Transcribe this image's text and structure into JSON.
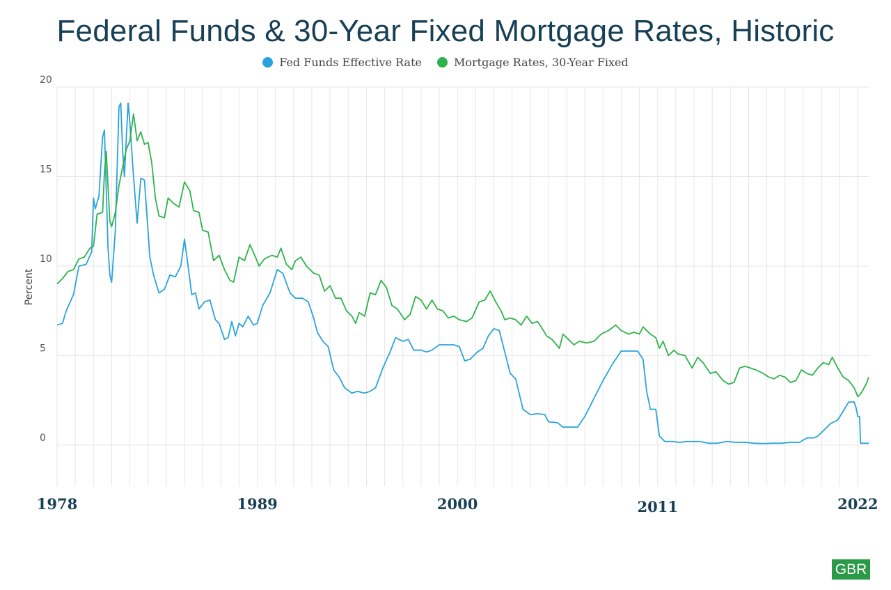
{
  "chart_data": {
    "type": "line",
    "title": "Federal Funds & 30-Year Fixed Mortgage Rates, Historic",
    "ylabel": "Percent",
    "xlabel": "",
    "ylim": [
      -2.3,
      20
    ],
    "yticks": [
      0,
      5,
      10,
      15,
      20
    ],
    "xlim": [
      1978.0,
      2022.6
    ],
    "xticks": [
      {
        "x": 1978.0,
        "label": "1978",
        "drop": false
      },
      {
        "x": 1989.0,
        "label": "1989",
        "drop": false
      },
      {
        "x": 2000.0,
        "label": "2000",
        "drop": false
      },
      {
        "x": 2011.0,
        "label": "2011",
        "drop": true
      },
      {
        "x": 2022.0,
        "label": "2022",
        "drop": false
      }
    ],
    "grid": true,
    "legend": "top-center",
    "series": [
      {
        "name": "Fed Funds Effective Rate",
        "color": "#29a3dc",
        "points": [
          [
            1978.0,
            6.7
          ],
          [
            1978.3,
            6.8
          ],
          [
            1978.5,
            7.5
          ],
          [
            1978.9,
            8.4
          ],
          [
            1979.2,
            10.0
          ],
          [
            1979.6,
            10.1
          ],
          [
            1979.9,
            10.8
          ],
          [
            1980.0,
            13.8
          ],
          [
            1980.1,
            13.2
          ],
          [
            1980.3,
            13.9
          ],
          [
            1980.5,
            17.2
          ],
          [
            1980.6,
            17.6
          ],
          [
            1980.8,
            11.0
          ],
          [
            1980.9,
            9.5
          ],
          [
            1981.0,
            9.1
          ],
          [
            1981.2,
            12.0
          ],
          [
            1981.4,
            18.9
          ],
          [
            1981.5,
            19.1
          ],
          [
            1981.6,
            16.5
          ],
          [
            1981.7,
            15.0
          ],
          [
            1981.9,
            19.1
          ],
          [
            1982.0,
            18.0
          ],
          [
            1982.2,
            15.0
          ],
          [
            1982.4,
            12.4
          ],
          [
            1982.6,
            14.9
          ],
          [
            1982.8,
            14.8
          ],
          [
            1983.1,
            10.5
          ],
          [
            1983.3,
            9.5
          ],
          [
            1983.6,
            8.5
          ],
          [
            1983.9,
            8.7
          ],
          [
            1984.2,
            9.5
          ],
          [
            1984.5,
            9.4
          ],
          [
            1984.8,
            10.0
          ],
          [
            1985.0,
            11.5
          ],
          [
            1985.2,
            10.0
          ],
          [
            1985.4,
            8.4
          ],
          [
            1985.6,
            8.5
          ],
          [
            1985.8,
            7.6
          ],
          [
            1986.1,
            8.0
          ],
          [
            1986.4,
            8.1
          ],
          [
            1986.7,
            7.0
          ],
          [
            1986.9,
            6.8
          ],
          [
            1987.2,
            5.9
          ],
          [
            1987.4,
            6.0
          ],
          [
            1987.6,
            6.9
          ],
          [
            1987.8,
            6.1
          ],
          [
            1988.0,
            6.8
          ],
          [
            1988.2,
            6.6
          ],
          [
            1988.5,
            7.2
          ],
          [
            1988.8,
            6.7
          ],
          [
            1989.0,
            6.8
          ],
          [
            1989.3,
            7.8
          ],
          [
            1989.7,
            8.5
          ],
          [
            1990.1,
            9.8
          ],
          [
            1990.4,
            9.6
          ],
          [
            1990.8,
            8.5
          ],
          [
            1991.1,
            8.2
          ],
          [
            1991.5,
            8.2
          ],
          [
            1991.8,
            8.0
          ],
          [
            1992.1,
            7.1
          ],
          [
            1992.3,
            6.3
          ],
          [
            1992.6,
            5.8
          ],
          [
            1992.9,
            5.5
          ],
          [
            1993.2,
            4.2
          ],
          [
            1993.5,
            3.8
          ],
          [
            1993.8,
            3.2
          ],
          [
            1994.2,
            2.9
          ],
          [
            1994.5,
            3.0
          ],
          [
            1994.9,
            2.9
          ],
          [
            1995.2,
            3.0
          ],
          [
            1995.5,
            3.2
          ],
          [
            1995.9,
            4.3
          ],
          [
            1996.3,
            5.2
          ],
          [
            1996.6,
            6.0
          ],
          [
            1997.0,
            5.8
          ],
          [
            1997.3,
            5.9
          ],
          [
            1997.6,
            5.3
          ],
          [
            1998.0,
            5.3
          ],
          [
            1998.3,
            5.2
          ],
          [
            1998.6,
            5.3
          ],
          [
            1999.0,
            5.6
          ],
          [
            1999.4,
            5.6
          ],
          [
            1999.8,
            5.6
          ],
          [
            2000.1,
            5.5
          ],
          [
            2000.4,
            4.7
          ],
          [
            2000.7,
            4.8
          ],
          [
            2001.1,
            5.2
          ],
          [
            2001.4,
            5.4
          ],
          [
            2001.7,
            6.1
          ],
          [
            2002.0,
            6.5
          ],
          [
            2002.3,
            6.4
          ],
          [
            2002.6,
            5.2
          ],
          [
            2002.9,
            4.0
          ],
          [
            2003.2,
            3.7
          ],
          [
            2003.6,
            2.0
          ],
          [
            2004.0,
            1.7
          ],
          [
            2004.4,
            1.75
          ],
          [
            2004.8,
            1.7
          ],
          [
            2005.0,
            1.3
          ],
          [
            2005.5,
            1.25
          ],
          [
            2005.8,
            1.0
          ],
          [
            2006.3,
            1.0
          ],
          [
            2006.6,
            1.0
          ],
          [
            2007.0,
            1.6
          ],
          [
            2007.5,
            2.6
          ],
          [
            2008.0,
            3.6
          ],
          [
            2008.5,
            4.5
          ],
          [
            2009.0,
            5.25
          ],
          [
            2009.5,
            5.25
          ],
          [
            2009.9,
            5.25
          ],
          [
            2010.2,
            4.8
          ],
          [
            2010.4,
            3.0
          ],
          [
            2010.6,
            2.0
          ],
          [
            2010.9,
            2.0
          ],
          [
            2011.1,
            0.5
          ],
          [
            2011.4,
            0.2
          ],
          [
            2011.8,
            0.2
          ],
          [
            2012.2,
            0.15
          ],
          [
            2012.6,
            0.2
          ],
          [
            2013.3,
            0.2
          ],
          [
            2013.8,
            0.1
          ],
          [
            2014.3,
            0.1
          ],
          [
            2014.8,
            0.2
          ],
          [
            2015.3,
            0.15
          ],
          [
            2015.8,
            0.15
          ],
          [
            2016.3,
            0.1
          ],
          [
            2016.8,
            0.08
          ],
          [
            2017.3,
            0.1
          ],
          [
            2017.8,
            0.1
          ],
          [
            2018.3,
            0.15
          ],
          [
            2018.8,
            0.15
          ],
          [
            2019.2,
            0.4
          ],
          [
            2019.6,
            0.4
          ],
          [
            2019.8,
            0.5
          ],
          [
            2020.2,
            0.9
          ],
          [
            2020.5,
            1.2
          ],
          [
            2020.9,
            1.4
          ],
          [
            2021.2,
            1.9
          ],
          [
            2021.5,
            2.4
          ],
          [
            2021.8,
            2.4
          ],
          [
            2021.9,
            2.1
          ],
          [
            2022.0,
            1.6
          ],
          [
            2022.1,
            1.6
          ],
          [
            2022.15,
            0.1
          ],
          [
            2022.3,
            0.1
          ],
          [
            2022.6,
            0.1
          ]
        ]
      },
      {
        "name": "Mortgage Rates, 30-Year Fixed",
        "color": "#2db34a",
        "points": [
          [
            1978.0,
            9.0
          ],
          [
            1978.3,
            9.3
          ],
          [
            1978.6,
            9.7
          ],
          [
            1978.9,
            9.8
          ],
          [
            1979.2,
            10.4
          ],
          [
            1979.5,
            10.5
          ],
          [
            1979.8,
            11.0
          ],
          [
            1980.0,
            11.1
          ],
          [
            1980.2,
            12.9
          ],
          [
            1980.5,
            13.0
          ],
          [
            1980.6,
            15.2
          ],
          [
            1980.7,
            16.4
          ],
          [
            1980.9,
            12.5
          ],
          [
            1981.0,
            12.2
          ],
          [
            1981.2,
            13.0
          ],
          [
            1981.4,
            14.5
          ],
          [
            1981.6,
            15.5
          ],
          [
            1981.8,
            16.5
          ],
          [
            1982.0,
            17.0
          ],
          [
            1982.2,
            18.5
          ],
          [
            1982.4,
            17.0
          ],
          [
            1982.6,
            17.5
          ],
          [
            1982.8,
            16.8
          ],
          [
            1983.0,
            16.9
          ],
          [
            1983.2,
            15.8
          ],
          [
            1983.4,
            13.8
          ],
          [
            1983.6,
            12.8
          ],
          [
            1983.9,
            12.7
          ],
          [
            1984.1,
            13.8
          ],
          [
            1984.4,
            13.5
          ],
          [
            1984.7,
            13.3
          ],
          [
            1985.0,
            14.7
          ],
          [
            1985.3,
            14.2
          ],
          [
            1985.5,
            13.1
          ],
          [
            1985.8,
            13.0
          ],
          [
            1986.0,
            12.0
          ],
          [
            1986.3,
            11.9
          ],
          [
            1986.6,
            10.3
          ],
          [
            1986.9,
            10.6
          ],
          [
            1987.2,
            9.8
          ],
          [
            1987.5,
            9.2
          ],
          [
            1987.7,
            9.1
          ],
          [
            1988.0,
            10.5
          ],
          [
            1988.3,
            10.3
          ],
          [
            1988.6,
            11.2
          ],
          [
            1988.9,
            10.5
          ],
          [
            1989.1,
            10.0
          ],
          [
            1989.4,
            10.4
          ],
          [
            1989.8,
            10.6
          ],
          [
            1990.1,
            10.5
          ],
          [
            1990.3,
            11.0
          ],
          [
            1990.6,
            10.1
          ],
          [
            1990.9,
            9.8
          ],
          [
            1991.1,
            10.3
          ],
          [
            1991.4,
            10.5
          ],
          [
            1991.7,
            10.0
          ],
          [
            1992.1,
            9.6
          ],
          [
            1992.4,
            9.5
          ],
          [
            1992.7,
            8.6
          ],
          [
            1993.0,
            8.9
          ],
          [
            1993.3,
            8.2
          ],
          [
            1993.6,
            8.2
          ],
          [
            1993.9,
            7.5
          ],
          [
            1994.2,
            7.2
          ],
          [
            1994.4,
            6.8
          ],
          [
            1994.6,
            7.4
          ],
          [
            1994.9,
            7.2
          ],
          [
            1995.2,
            8.5
          ],
          [
            1995.5,
            8.4
          ],
          [
            1995.8,
            9.2
          ],
          [
            1996.1,
            8.8
          ],
          [
            1996.4,
            7.8
          ],
          [
            1996.7,
            7.6
          ],
          [
            1997.1,
            7.0
          ],
          [
            1997.4,
            7.3
          ],
          [
            1997.7,
            8.3
          ],
          [
            1998.0,
            8.1
          ],
          [
            1998.3,
            7.6
          ],
          [
            1998.6,
            8.1
          ],
          [
            1998.9,
            7.6
          ],
          [
            1999.2,
            7.5
          ],
          [
            1999.5,
            7.1
          ],
          [
            1999.8,
            7.2
          ],
          [
            2000.1,
            7.0
          ],
          [
            2000.5,
            6.9
          ],
          [
            2000.8,
            7.1
          ],
          [
            2001.2,
            8.0
          ],
          [
            2001.5,
            8.1
          ],
          [
            2001.8,
            8.6
          ],
          [
            2002.1,
            8.0
          ],
          [
            2002.4,
            7.5
          ],
          [
            2002.6,
            7.0
          ],
          [
            2002.9,
            7.1
          ],
          [
            2003.2,
            7.0
          ],
          [
            2003.5,
            6.7
          ],
          [
            2003.8,
            7.2
          ],
          [
            2004.1,
            6.8
          ],
          [
            2004.4,
            6.9
          ],
          [
            2004.6,
            6.6
          ],
          [
            2004.9,
            6.1
          ],
          [
            2005.2,
            5.9
          ],
          [
            2005.6,
            5.4
          ],
          [
            2005.8,
            6.2
          ],
          [
            2006.1,
            5.9
          ],
          [
            2006.4,
            5.6
          ],
          [
            2006.7,
            5.8
          ],
          [
            2007.1,
            5.7
          ],
          [
            2007.5,
            5.8
          ],
          [
            2007.9,
            6.2
          ],
          [
            2008.3,
            6.4
          ],
          [
            2008.7,
            6.7
          ],
          [
            2009.0,
            6.4
          ],
          [
            2009.4,
            6.2
          ],
          [
            2009.7,
            6.3
          ],
          [
            2010.0,
            6.2
          ],
          [
            2010.2,
            6.6
          ],
          [
            2010.6,
            6.2
          ],
          [
            2010.9,
            6.0
          ],
          [
            2011.1,
            5.4
          ],
          [
            2011.3,
            5.8
          ],
          [
            2011.6,
            5.0
          ],
          [
            2011.9,
            5.3
          ],
          [
            2012.1,
            5.1
          ],
          [
            2012.5,
            5.0
          ],
          [
            2012.9,
            4.3
          ],
          [
            2013.2,
            4.9
          ],
          [
            2013.5,
            4.6
          ],
          [
            2013.9,
            4.0
          ],
          [
            2014.2,
            4.1
          ],
          [
            2014.6,
            3.6
          ],
          [
            2014.9,
            3.4
          ],
          [
            2015.2,
            3.5
          ],
          [
            2015.5,
            4.3
          ],
          [
            2015.8,
            4.4
          ],
          [
            2016.1,
            4.3
          ],
          [
            2016.4,
            4.2
          ],
          [
            2016.8,
            4.0
          ],
          [
            2017.1,
            3.8
          ],
          [
            2017.4,
            3.7
          ],
          [
            2017.7,
            3.9
          ],
          [
            2018.0,
            3.8
          ],
          [
            2018.3,
            3.5
          ],
          [
            2018.6,
            3.6
          ],
          [
            2018.9,
            4.2
          ],
          [
            2019.2,
            4.0
          ],
          [
            2019.5,
            3.9
          ],
          [
            2019.8,
            4.3
          ],
          [
            2020.1,
            4.6
          ],
          [
            2020.4,
            4.5
          ],
          [
            2020.6,
            4.9
          ],
          [
            2020.9,
            4.3
          ],
          [
            2021.2,
            3.8
          ],
          [
            2021.5,
            3.6
          ],
          [
            2021.8,
            3.2
          ],
          [
            2022.0,
            2.7
          ],
          [
            2022.1,
            2.8
          ],
          [
            2022.25,
            3.0
          ],
          [
            2022.4,
            3.3
          ],
          [
            2022.5,
            3.5
          ],
          [
            2022.6,
            3.8
          ]
        ]
      }
    ]
  },
  "badge": {
    "label": "GBR"
  }
}
